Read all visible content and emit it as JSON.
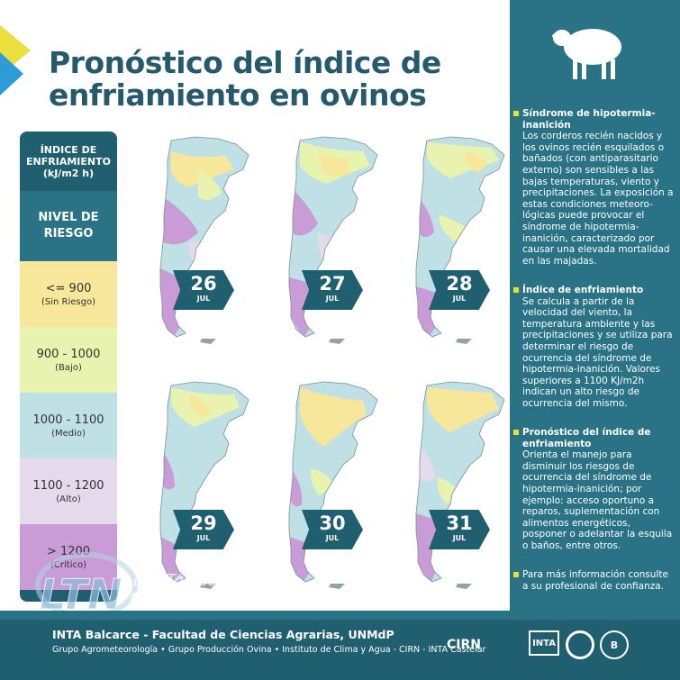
{
  "title": {
    "line1": "Pronóstico del índice de",
    "line2": "enfriamiento en ovinos"
  },
  "legend": {
    "heading_line1": "ÍNDICE DE",
    "heading_line2": "ENFRIAMIENTO",
    "heading_unit": "(kJ/m2 h)",
    "risk_label_line1": "NIVEL DE",
    "risk_label_line2": "RIESGO",
    "items": [
      {
        "range": "<= 900",
        "category": "(Sin Riesgo)",
        "color": "#f7e79a"
      },
      {
        "range": "900 - 1000",
        "category": "(Bajo)",
        "color": "#e9f3b0"
      },
      {
        "range": "1000 - 1100",
        "category": "(Medio)",
        "color": "#bfe0e5"
      },
      {
        "range": "1100 - 1200",
        "category": "(Alto)",
        "color": "#e5d9ec"
      },
      {
        "range": "> 1200",
        "category": "(Crítico)",
        "color": "#c99bd7"
      }
    ]
  },
  "maps": [
    {
      "day": "26",
      "month": "JUL"
    },
    {
      "day": "27",
      "month": "JUL"
    },
    {
      "day": "28",
      "month": "JUL"
    },
    {
      "day": "29",
      "month": "JUL"
    },
    {
      "day": "30",
      "month": "JUL"
    },
    {
      "day": "31",
      "month": "JUL"
    }
  ],
  "sidebar": {
    "sections": [
      {
        "heading": "Síndrome de hipotermia-inanición",
        "body": "Los corderos recién nacidos y los ovinos recién esquilados o bañados (con antiparasitario externo) son sensibles a las bajas temperaturas, viento y precipitaciones. La exposición a estas condiciones meteoro-lógicas puede provocar el síndrome de hipotermia-inanición, caracterizado por causar una elevada mortalidad en las majadas."
      },
      {
        "heading": "Índice de enfriamiento",
        "body": "Se calcula a partir de la velocidad del viento, la temperatura ambiente y las precipitaciones y se utiliza para determinar el riesgo de ocurrencia del síndrome de hipotermia-inanición. Valores superiores a 1100 KJ/m2h indican un alto riesgo de ocurrencia del mismo."
      },
      {
        "heading": "Pronóstico del índice de enfriamiento",
        "body": "Orienta el manejo para disminuir los riesgos de ocurrencia del síndrome de hipotermia-inanición; por ejemplo: acceso oportuno a reparos, suplementación con alimentos energéticos, posponer o adelantar la esquila o baños, entre otros."
      },
      {
        "heading": "",
        "body": "Para más información consulte a su profesional de confianza."
      }
    ]
  },
  "footer": {
    "line1": "INTA Balcarce - Facultad de Ciencias Agrarias, UNMdP",
    "line2": "Grupo Agrometeorología • Grupo Producción Ovina • Instituto de Clima y Agua - CIRN - INTA Castelar",
    "cirn": "CIRN",
    "inta": "INTA"
  },
  "watermark": {
    "line1": "Los Toldos es",
    "brand": "LTN",
    "line2": "NOTICIA"
  }
}
